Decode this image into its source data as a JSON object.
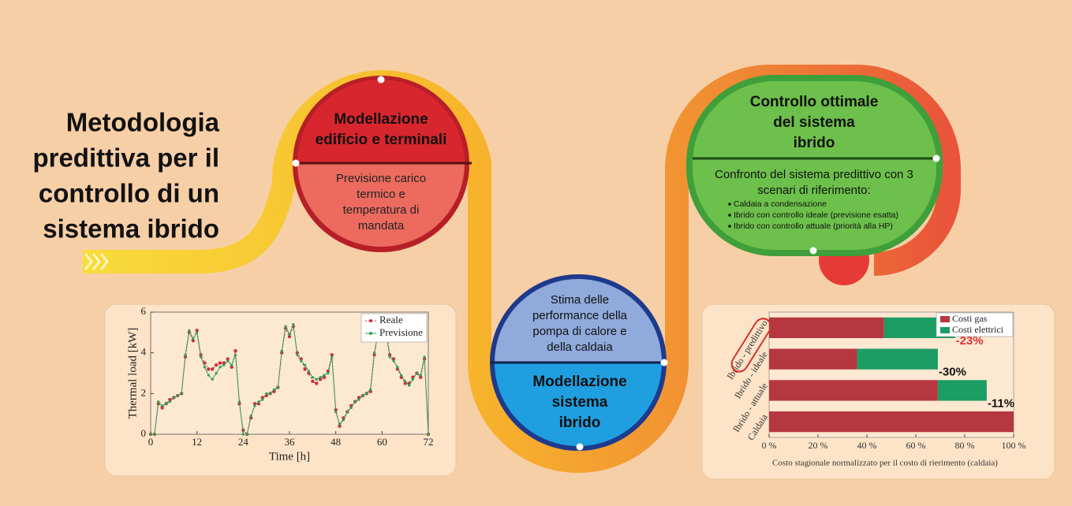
{
  "title_lines": [
    "Metodologia",
    "predittiva per il",
    "controllo di un",
    "sistema ibrido"
  ],
  "stages": [
    {
      "heading_lines": [
        "Modellazione",
        "edificio e terminali"
      ],
      "body_lines": [
        "Previsione carico",
        "termico e",
        "temperatura di",
        "mandata"
      ]
    },
    {
      "heading_lines": [
        "Modellazione",
        "sistema",
        "ibrido"
      ],
      "body_lines": [
        "Stima delle",
        "performance della",
        "pompa di calore e",
        "della caldaia"
      ]
    },
    {
      "heading_lines": [
        "Controllo ottimale",
        "del sistema",
        "ibrido"
      ],
      "body_lines": [
        "Confronto del sistema predittivo con 3",
        "scenari di riferimento:"
      ],
      "bullets": [
        "Caldaia a condensazione",
        "Ibrido con controllo ideale (previsione esatta)",
        "Ibrido con controllo attuale (priorità alla HP)"
      ]
    }
  ],
  "chart_data": [
    {
      "type": "line",
      "xlabel": "Time [h]",
      "ylabel": "Thermal load [kW]",
      "x": [
        0,
        1,
        2,
        3,
        4,
        5,
        6,
        7,
        8,
        9,
        10,
        11,
        12,
        13,
        14,
        15,
        16,
        17,
        18,
        19,
        20,
        21,
        22,
        23,
        24,
        25,
        26,
        27,
        28,
        29,
        30,
        31,
        32,
        33,
        34,
        35,
        36,
        37,
        38,
        39,
        40,
        41,
        42,
        43,
        44,
        45,
        46,
        47,
        48,
        49,
        50,
        51,
        52,
        53,
        54,
        55,
        56,
        57,
        58,
        59,
        60,
        61,
        62,
        63,
        64,
        65,
        66,
        67,
        68,
        69,
        70,
        71,
        72
      ],
      "series": [
        {
          "name": "Reale",
          "color": "#c8313a",
          "values": [
            0,
            0,
            1.5,
            1.3,
            1.5,
            1.7,
            1.8,
            1.9,
            2.0,
            3.8,
            5.0,
            4.6,
            5.1,
            3.9,
            3.5,
            3.2,
            3.2,
            3.4,
            3.5,
            3.5,
            3.7,
            3.3,
            4.1,
            1.5,
            0.2,
            0,
            0.8,
            1.5,
            1.5,
            1.8,
            1.9,
            2.0,
            2.1,
            2.3,
            4.0,
            5.2,
            4.8,
            5.3,
            4.0,
            3.7,
            3.2,
            3.0,
            2.6,
            2.5,
            2.7,
            2.8,
            3.1,
            3.9,
            1.2,
            0.4,
            0.8,
            1.1,
            1.4,
            1.6,
            1.8,
            1.9,
            2.0,
            2.1,
            3.9,
            5.1,
            4.7,
            5.2,
            3.9,
            3.7,
            3.2,
            2.8,
            2.5,
            2.5,
            2.8,
            3.0,
            2.8,
            3.7,
            0
          ]
        },
        {
          "name": "Previsione",
          "color": "#2f9e55",
          "values": [
            0,
            0,
            1.6,
            1.4,
            1.5,
            1.6,
            1.8,
            1.9,
            2.0,
            3.9,
            5.1,
            4.7,
            5.0,
            3.8,
            3.3,
            2.9,
            2.7,
            3.0,
            3.3,
            3.4,
            3.6,
            3.4,
            3.9,
            1.6,
            0,
            0,
            0.9,
            1.4,
            1.6,
            1.7,
            2.0,
            2.0,
            2.2,
            2.3,
            4.1,
            5.3,
            4.9,
            5.4,
            3.9,
            3.6,
            3.4,
            3.1,
            2.8,
            2.7,
            2.8,
            2.9,
            3.0,
            3.8,
            1.1,
            0.5,
            0.7,
            1.1,
            1.3,
            1.6,
            1.7,
            1.9,
            2.0,
            2.2,
            4.0,
            5.0,
            4.8,
            5.1,
            3.8,
            3.6,
            3.3,
            2.9,
            2.6,
            2.4,
            2.7,
            3.0,
            2.9,
            3.8,
            0
          ]
        }
      ],
      "xlim": [
        0,
        72
      ],
      "xticks": [
        0,
        12,
        24,
        36,
        48,
        60,
        72
      ],
      "ylim": [
        0,
        6
      ],
      "yticks": [
        0,
        2,
        4,
        6
      ],
      "legend": "upper right"
    },
    {
      "type": "bar",
      "orientation": "horizontal",
      "stacked": true,
      "xlabel": "Costo stagionale normalizzato per il costo di rierimento (caldaia)",
      "categories": [
        "Ibrido - predittivo",
        "Ibrido - ideale",
        "Ibrido - attuale",
        "Caldaia"
      ],
      "series": [
        {
          "name": "Costi gas",
          "color": "#b5373f",
          "values": [
            47,
            36,
            69,
            100
          ]
        },
        {
          "name": "Costi elettrici",
          "color": "#1b9d63",
          "values": [
            29,
            33,
            20,
            0
          ]
        }
      ],
      "annotations": [
        {
          "text": "-23%",
          "color": "#e0302f"
        },
        {
          "text": "-30%",
          "color": "#111111"
        },
        {
          "text": "-11%",
          "color": "#111111"
        }
      ],
      "xlim": [
        0,
        100
      ],
      "xticks": [
        {
          "value": 0,
          "label": "0 %"
        },
        {
          "value": 20,
          "label": "20 %"
        },
        {
          "value": 40,
          "label": "40 %"
        },
        {
          "value": 60,
          "label": "60 %"
        },
        {
          "value": 80,
          "label": "80 %"
        },
        {
          "value": 100,
          "label": "100 %"
        }
      ],
      "legend": "upper right"
    }
  ]
}
